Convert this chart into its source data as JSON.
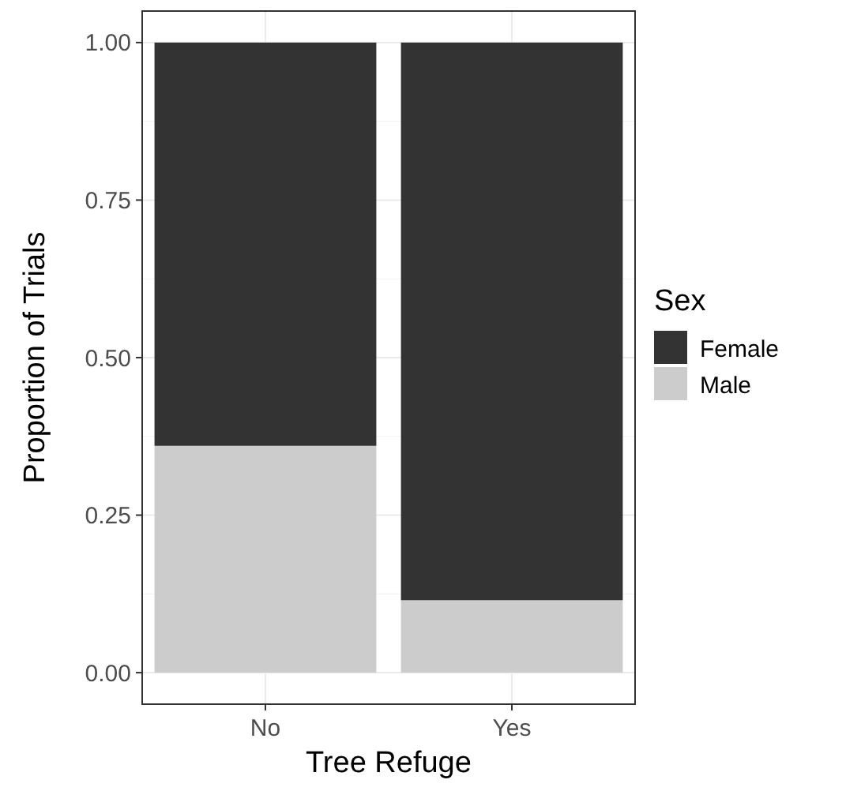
{
  "chart_data": {
    "type": "bar",
    "stacked": true,
    "xlabel": "Tree Refuge",
    "ylabel": "Proportion of Trials",
    "legend_title": "Sex",
    "categories": [
      "No",
      "Yes"
    ],
    "series": [
      {
        "name": "Male",
        "color": "#cccccc",
        "values": [
          0.36,
          0.115
        ]
      },
      {
        "name": "Female",
        "color": "#333333",
        "values": [
          0.64,
          0.885
        ]
      }
    ],
    "ylim": [
      -0.05,
      1.05
    ],
    "yticks": [
      {
        "value": 0,
        "label": "0.00"
      },
      {
        "value": 0.25,
        "label": "0.25"
      },
      {
        "value": 0.5,
        "label": "0.50"
      },
      {
        "value": 0.75,
        "label": "0.75"
      },
      {
        "value": 1,
        "label": "1.00"
      }
    ],
    "grid": true,
    "legend": "right"
  }
}
